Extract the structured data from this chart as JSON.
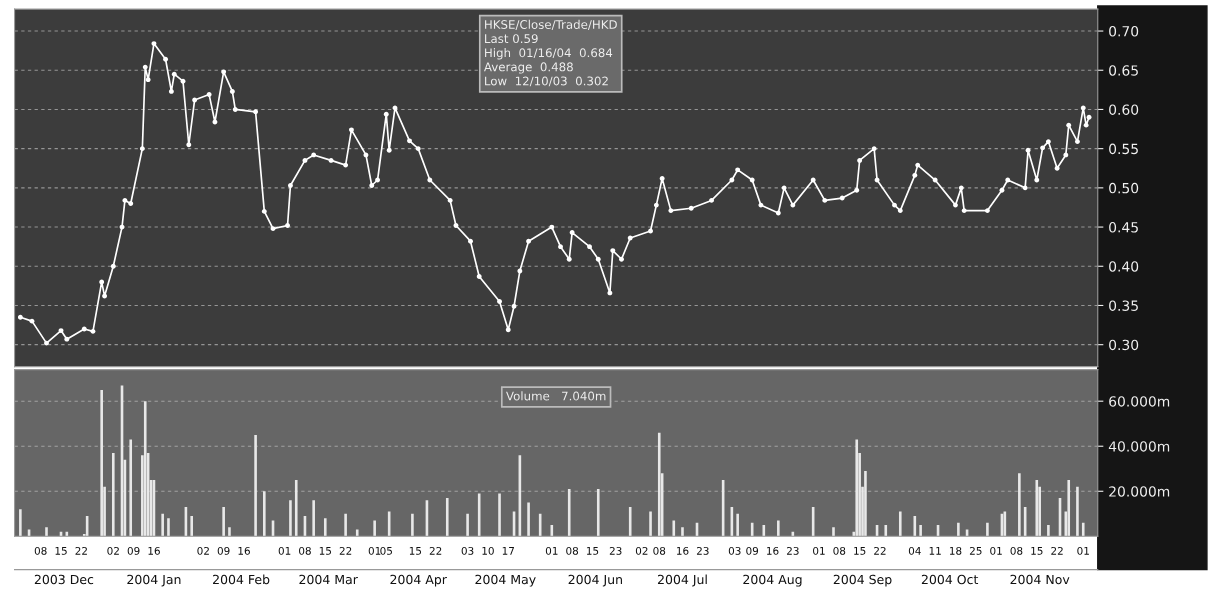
{
  "chart_data": [
    {
      "type": "line",
      "marker": "circle",
      "grid": "y",
      "tick_labels": "y",
      "annotations": [
        "HKSE/Close/Trade/HKD",
        "Last 0.59",
        "High  01/16/04  0.684",
        "Average  0.488",
        "Low  12/10/03  0.302"
      ],
      "x": [
        "2003-12-01",
        "2003-12-05",
        "2003-12-10",
        "2003-12-15",
        "2003-12-17",
        "2003-12-23",
        "2003-12-26",
        "2003-12-29",
        "2003-12-30",
        "2004-01-02",
        "2004-01-05",
        "2004-01-06",
        "2004-01-08",
        "2004-01-12",
        "2004-01-13",
        "2004-01-14",
        "2004-01-16",
        "2004-01-20",
        "2004-01-22",
        "2004-01-23",
        "2004-01-26",
        "2004-01-28",
        "2004-01-30",
        "2004-02-04",
        "2004-02-06",
        "2004-02-09",
        "2004-02-12",
        "2004-02-13",
        "2004-02-20",
        "2004-02-23",
        "2004-02-26",
        "2004-03-02",
        "2004-03-03",
        "2004-03-08",
        "2004-03-11",
        "2004-03-17",
        "2004-03-22",
        "2004-03-24",
        "2004-03-29",
        "2004-03-31",
        "2004-04-02",
        "2004-04-05",
        "2004-04-06",
        "2004-04-08",
        "2004-04-13",
        "2004-04-16",
        "2004-04-20",
        "2004-04-27",
        "2004-04-29",
        "2004-05-04",
        "2004-05-07",
        "2004-05-14",
        "2004-05-17",
        "2004-05-19",
        "2004-05-21",
        "2004-05-24",
        "2004-06-01",
        "2004-06-04",
        "2004-06-07",
        "2004-06-08",
        "2004-06-14",
        "2004-06-17",
        "2004-06-21",
        "2004-06-22",
        "2004-06-25",
        "2004-06-28",
        "2004-07-05",
        "2004-07-07",
        "2004-07-09",
        "2004-07-12",
        "2004-07-19",
        "2004-07-26",
        "2004-08-02",
        "2004-08-04",
        "2004-08-09",
        "2004-08-12",
        "2004-08-18",
        "2004-08-20",
        "2004-08-23",
        "2004-08-30",
        "2004-09-03",
        "2004-09-09",
        "2004-09-14",
        "2004-09-15",
        "2004-09-20",
        "2004-09-21",
        "2004-09-27",
        "2004-09-29",
        "2004-10-04",
        "2004-10-05",
        "2004-10-11",
        "2004-10-18",
        "2004-10-20",
        "2004-10-21",
        "2004-10-29",
        "2004-11-03",
        "2004-11-05",
        "2004-11-11",
        "2004-11-12",
        "2004-11-15",
        "2004-11-17",
        "2004-11-19",
        "2004-11-22",
        "2004-11-25",
        "2004-11-26",
        "2004-11-29",
        "2004-12-01",
        "2004-12-02",
        "2004-12-03"
      ],
      "series": [
        {
          "color": "#ffffff",
          "values": [
            0.335,
            0.33,
            0.302,
            0.318,
            0.307,
            0.32,
            0.317,
            0.38,
            0.362,
            0.4,
            0.45,
            0.484,
            0.48,
            0.55,
            0.654,
            0.638,
            0.684,
            0.664,
            0.623,
            0.645,
            0.636,
            0.555,
            0.612,
            0.619,
            0.584,
            0.648,
            0.623,
            0.6,
            0.597,
            0.47,
            0.448,
            0.452,
            0.503,
            0.535,
            0.542,
            0.535,
            0.529,
            0.574,
            0.542,
            0.503,
            0.51,
            0.594,
            0.548,
            0.602,
            0.56,
            0.55,
            0.51,
            0.484,
            0.452,
            0.432,
            0.387,
            0.355,
            0.319,
            0.349,
            0.394,
            0.432,
            0.45,
            0.425,
            0.409,
            0.443,
            0.425,
            0.409,
            0.366,
            0.42,
            0.409,
            0.436,
            0.445,
            0.478,
            0.512,
            0.471,
            0.474,
            0.484,
            0.51,
            0.523,
            0.51,
            0.478,
            0.468,
            0.5,
            0.478,
            0.51,
            0.484,
            0.487,
            0.497,
            0.535,
            0.55,
            0.51,
            0.478,
            0.471,
            0.516,
            0.529,
            0.51,
            0.478,
            0.5,
            0.471,
            0.471,
            0.497,
            0.51,
            0.5,
            0.548,
            0.51,
            0.551,
            0.559,
            0.525,
            0.542,
            0.58,
            0.559,
            0.602,
            0.58,
            0.59
          ]
        }
      ],
      "xlim": [
        "2003-11-29",
        "2004-12-06"
      ],
      "ylim": [
        0.272,
        0.728
      ],
      "yticks": [
        {
          "value": 0.3,
          "label": "0.30"
        },
        0.35,
        {
          "value": 0.4,
          "label": "0.40"
        },
        0.45,
        {
          "value": 0.5,
          "label": "0.50"
        },
        0.55,
        {
          "value": 0.6,
          "label": "0.60"
        },
        0.65,
        {
          "value": 0.7,
          "label": "0.70"
        }
      ]
    },
    {
      "type": "bar",
      "grid": "y",
      "annotations": [
        "Volume   7.040m"
      ],
      "x": [
        "2003-12-01",
        "2003-12-04",
        "2003-12-10",
        "2003-12-15",
        "2003-12-17",
        "2003-12-23",
        "2003-12-24",
        "2003-12-29",
        "2003-12-30",
        "2004-01-02",
        "2004-01-05",
        "2004-01-06",
        "2004-01-08",
        "2004-01-12",
        "2004-01-13",
        "2004-01-14",
        "2004-01-15",
        "2004-01-16",
        "2004-01-19",
        "2004-01-21",
        "2004-01-27",
        "2004-01-29",
        "2004-02-09",
        "2004-02-11",
        "2004-02-20",
        "2004-02-23",
        "2004-02-26",
        "2004-03-03",
        "2004-03-05",
        "2004-03-08",
        "2004-03-11",
        "2004-03-15",
        "2004-03-22",
        "2004-03-26",
        "2004-04-01",
        "2004-04-06",
        "2004-04-14",
        "2004-04-19",
        "2004-04-26",
        "2004-05-03",
        "2004-05-07",
        "2004-05-14",
        "2004-05-19",
        "2004-05-21",
        "2004-05-24",
        "2004-05-28",
        "2004-06-01",
        "2004-06-07",
        "2004-06-17",
        "2004-06-28",
        "2004-07-05",
        "2004-07-08",
        "2004-07-09",
        "2004-07-13",
        "2004-07-16",
        "2004-07-21",
        "2004-07-30",
        "2004-08-02",
        "2004-08-04",
        "2004-08-09",
        "2004-08-13",
        "2004-08-18",
        "2004-08-23",
        "2004-08-30",
        "2004-09-06",
        "2004-09-13",
        "2004-09-14",
        "2004-09-15",
        "2004-09-16",
        "2004-09-17",
        "2004-09-21",
        "2004-09-24",
        "2004-09-29",
        "2004-10-04",
        "2004-10-06",
        "2004-10-12",
        "2004-10-19",
        "2004-10-22",
        "2004-10-29",
        "2004-11-03",
        "2004-11-04",
        "2004-11-09",
        "2004-11-11",
        "2004-11-15",
        "2004-11-16",
        "2004-11-19",
        "2004-11-23",
        "2004-11-25",
        "2004-11-26",
        "2004-11-29",
        "2004-12-01"
      ],
      "series": [
        {
          "color": "#e8e8e8",
          "values": [
            12,
            3,
            4,
            2,
            2,
            1,
            9,
            65,
            22,
            37,
            67,
            34,
            43,
            36,
            60,
            37,
            25,
            25,
            10,
            8,
            13,
            9,
            13,
            4,
            45,
            20,
            7,
            16,
            25,
            9,
            16,
            8,
            10,
            3,
            7,
            11,
            10,
            16,
            17,
            10,
            19,
            19,
            11,
            36,
            15,
            10,
            5,
            21,
            21,
            13,
            11,
            46,
            28,
            7,
            4,
            6,
            25,
            13,
            10,
            6,
            5,
            7,
            2,
            13,
            4,
            2,
            43,
            37,
            22,
            29,
            5,
            5,
            11,
            9,
            5,
            5,
            6,
            3,
            6,
            10,
            11,
            28,
            13,
            25,
            22,
            5,
            17,
            11,
            25,
            22,
            6
          ]
        }
      ],
      "xlim": [
        "2003-11-29",
        "2004-12-06"
      ],
      "ylim": [
        0,
        74
      ],
      "yticks": [
        {
          "value": 20,
          "label": "20.000m"
        },
        {
          "value": 40,
          "label": "40.000m"
        },
        {
          "value": 60,
          "label": "60.000m"
        }
      ],
      "xticks": [
        {
          "value": "2003-12-08",
          "label": "08"
        },
        {
          "value": "2003-12-15",
          "label": "15"
        },
        {
          "value": "2003-12-22",
          "label": "22"
        },
        {
          "value": "2004-01-02",
          "label": "02"
        },
        {
          "value": "2004-01-09",
          "label": "09"
        },
        {
          "value": "2004-01-16",
          "label": "16"
        },
        {
          "value": "2004-02-02",
          "label": "02"
        },
        {
          "value": "2004-02-09",
          "label": "09"
        },
        {
          "value": "2004-02-16",
          "label": "16"
        },
        {
          "value": "2004-03-01",
          "label": "01"
        },
        {
          "value": "2004-03-08",
          "label": "08"
        },
        {
          "value": "2004-03-15",
          "label": "15"
        },
        {
          "value": "2004-03-22",
          "label": "22"
        },
        {
          "value": "2004-04-01",
          "label": "01"
        },
        {
          "value": "2004-04-05",
          "label": "05"
        },
        {
          "value": "2004-04-15",
          "label": "15"
        },
        {
          "value": "2004-04-22",
          "label": "22"
        },
        {
          "value": "2004-05-03",
          "label": "03"
        },
        {
          "value": "2004-05-10",
          "label": "10"
        },
        {
          "value": "2004-05-17",
          "label": "17"
        },
        {
          "value": "2004-06-01",
          "label": "01"
        },
        {
          "value": "2004-06-08",
          "label": "08"
        },
        {
          "value": "2004-06-15",
          "label": "15"
        },
        {
          "value": "2004-06-23",
          "label": "23"
        },
        {
          "value": "2004-07-02",
          "label": "02"
        },
        {
          "value": "2004-07-08",
          "label": "08"
        },
        {
          "value": "2004-07-16",
          "label": "16"
        },
        {
          "value": "2004-07-23",
          "label": "23"
        },
        {
          "value": "2004-08-03",
          "label": "03"
        },
        {
          "value": "2004-08-09",
          "label": "09"
        },
        {
          "value": "2004-08-16",
          "label": "16"
        },
        {
          "value": "2004-08-23",
          "label": "23"
        },
        {
          "value": "2004-09-01",
          "label": "01"
        },
        {
          "value": "2004-09-08",
          "label": "08"
        },
        {
          "value": "2004-09-15",
          "label": "15"
        },
        {
          "value": "2004-09-22",
          "label": "22"
        },
        {
          "value": "2004-10-04",
          "label": "04"
        },
        {
          "value": "2004-10-11",
          "label": "11"
        },
        {
          "value": "2004-10-18",
          "label": "18"
        },
        {
          "value": "2004-10-25",
          "label": "25"
        },
        {
          "value": "2004-11-01",
          "label": "01"
        },
        {
          "value": "2004-11-08",
          "label": "08"
        },
        {
          "value": "2004-11-15",
          "label": "15"
        },
        {
          "value": "2004-11-22",
          "label": "22"
        },
        {
          "value": "2004-12-01",
          "label": "01"
        }
      ],
      "x2lim": [
        "2003-11-29",
        "2004-12-06"
      ],
      "x2ticks": [
        {
          "value": "2003-12-16",
          "label": "2003 Dec"
        },
        {
          "value": "2004-01-16",
          "label": "2004 Jan"
        },
        {
          "value": "2004-02-15",
          "label": "2004 Feb"
        },
        {
          "value": "2004-03-16",
          "label": "2004 Mar"
        },
        {
          "value": "2004-04-16",
          "label": "2004 Apr"
        },
        {
          "value": "2004-05-16",
          "label": "2004 May"
        },
        {
          "value": "2004-06-16",
          "label": "2004 Jun"
        },
        {
          "value": "2004-07-16",
          "label": "2004 Jul"
        },
        {
          "value": "2004-08-16",
          "label": "2004 Aug"
        },
        {
          "value": "2004-09-16",
          "label": "2004 Sep"
        },
        {
          "value": "2004-10-16",
          "label": "2004 Oct"
        },
        {
          "value": "2004-11-16",
          "label": "2004 Nov"
        }
      ]
    }
  ]
}
